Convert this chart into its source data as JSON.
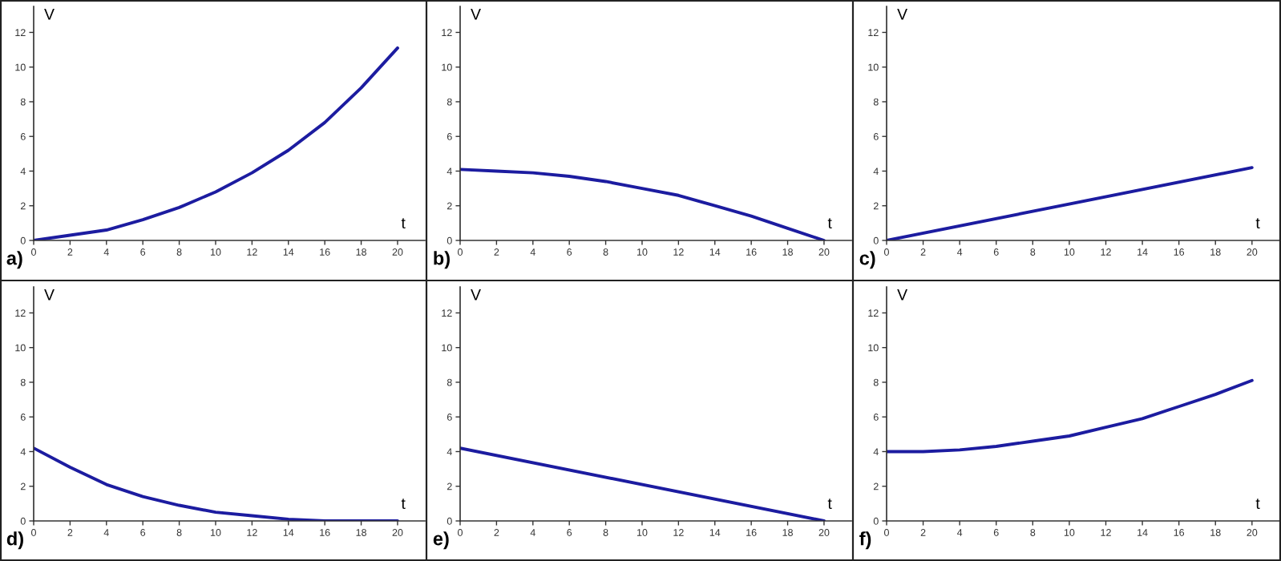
{
  "chart_data": [
    {
      "type": "line",
      "title": "a)",
      "xlabel": "t",
      "ylabel": "V",
      "x": [
        0,
        2,
        4,
        6,
        8,
        10,
        12,
        14,
        16,
        18,
        20
      ],
      "series": [
        {
          "color": "#1c1ca0",
          "values": [
            0,
            0.3,
            0.6,
            1.2,
            1.9,
            2.8,
            3.9,
            5.2,
            6.8,
            8.8,
            11.1
          ]
        }
      ],
      "xlim": [
        0,
        21.5
      ],
      "ylim": [
        0,
        13.5
      ],
      "xticks": [
        0,
        2,
        4,
        6,
        8,
        10,
        12,
        14,
        16,
        18,
        20
      ],
      "yticks": [
        0,
        2,
        4,
        6,
        8,
        10,
        12
      ],
      "grid": false,
      "legend": false
    },
    {
      "type": "line",
      "title": "b)",
      "xlabel": "t",
      "ylabel": "V",
      "x": [
        0,
        2,
        4,
        6,
        8,
        10,
        12,
        14,
        16,
        18,
        20
      ],
      "series": [
        {
          "color": "#1c1ca0",
          "values": [
            4.1,
            4.0,
            3.9,
            3.7,
            3.4,
            3.0,
            2.6,
            2.0,
            1.4,
            0.7,
            0
          ]
        }
      ],
      "xlim": [
        0,
        21.5
      ],
      "ylim": [
        0,
        13.5
      ],
      "xticks": [
        0,
        2,
        4,
        6,
        8,
        10,
        12,
        14,
        16,
        18,
        20
      ],
      "yticks": [
        0,
        2,
        4,
        6,
        8,
        10,
        12
      ],
      "grid": false,
      "legend": false
    },
    {
      "type": "line",
      "title": "c)",
      "xlabel": "t",
      "ylabel": "V",
      "x": [
        0,
        20
      ],
      "series": [
        {
          "color": "#1c1ca0",
          "values": [
            0,
            4.2
          ]
        }
      ],
      "xlim": [
        0,
        21.5
      ],
      "ylim": [
        0,
        13.5
      ],
      "xticks": [
        0,
        2,
        4,
        6,
        8,
        10,
        12,
        14,
        16,
        18,
        20
      ],
      "yticks": [
        0,
        2,
        4,
        6,
        8,
        10,
        12
      ],
      "grid": false,
      "legend": false
    },
    {
      "type": "line",
      "title": "d)",
      "xlabel": "t",
      "ylabel": "V",
      "x": [
        0,
        2,
        4,
        6,
        8,
        10,
        12,
        14,
        16,
        18,
        20
      ],
      "series": [
        {
          "color": "#1c1ca0",
          "values": [
            4.2,
            3.1,
            2.1,
            1.4,
            0.9,
            0.5,
            0.3,
            0.1,
            0,
            0,
            0
          ]
        }
      ],
      "xlim": [
        0,
        21.5
      ],
      "ylim": [
        0,
        13.5
      ],
      "xticks": [
        0,
        2,
        4,
        6,
        8,
        10,
        12,
        14,
        16,
        18,
        20
      ],
      "yticks": [
        0,
        2,
        4,
        6,
        8,
        10,
        12
      ],
      "grid": false,
      "legend": false
    },
    {
      "type": "line",
      "title": "e)",
      "xlabel": "t",
      "ylabel": "V",
      "x": [
        0,
        20
      ],
      "series": [
        {
          "color": "#1c1ca0",
          "values": [
            4.2,
            0
          ]
        }
      ],
      "xlim": [
        0,
        21.5
      ],
      "ylim": [
        0,
        13.5
      ],
      "xticks": [
        0,
        2,
        4,
        6,
        8,
        10,
        12,
        14,
        16,
        18,
        20
      ],
      "yticks": [
        0,
        2,
        4,
        6,
        8,
        10,
        12
      ],
      "grid": false,
      "legend": false
    },
    {
      "type": "line",
      "title": "f)",
      "xlabel": "t",
      "ylabel": "V",
      "x": [
        0,
        2,
        4,
        6,
        8,
        10,
        12,
        14,
        16,
        18,
        20
      ],
      "series": [
        {
          "color": "#1c1ca0",
          "values": [
            4.0,
            4.0,
            4.1,
            4.3,
            4.6,
            4.9,
            5.4,
            5.9,
            6.6,
            7.3,
            8.1
          ]
        }
      ],
      "xlim": [
        0,
        21.5
      ],
      "ylim": [
        0,
        13.5
      ],
      "xticks": [
        0,
        2,
        4,
        6,
        8,
        10,
        12,
        14,
        16,
        18,
        20
      ],
      "yticks": [
        0,
        2,
        4,
        6,
        8,
        10,
        12
      ],
      "grid": false,
      "legend": false
    }
  ]
}
